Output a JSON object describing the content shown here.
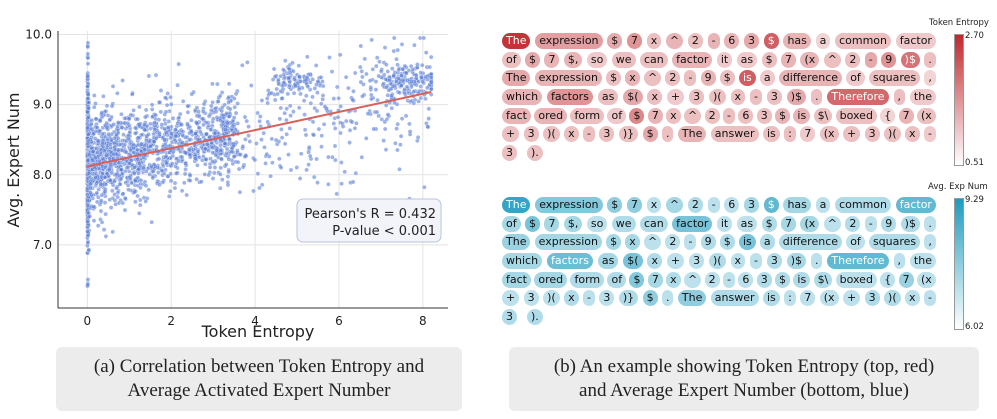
{
  "chart_data": [
    {
      "type": "scatter",
      "title": "",
      "xlabel": "Token Entropy",
      "ylabel": "Avg. Expert Num",
      "xlim": [
        -0.7,
        8.6
      ],
      "ylim": [
        6.1,
        10.05
      ],
      "xticks": [
        "0",
        "2",
        "4",
        "6",
        "8"
      ],
      "yticks": [
        "7.0",
        "8.0",
        "9.0",
        "10.0"
      ],
      "grid": true,
      "point_color": "#5b7fd6",
      "regression_line": {
        "x": [
          0,
          8.2
        ],
        "y": [
          8.12,
          9.18
        ],
        "color": "#d9605a"
      },
      "annotation": {
        "line1": "Pearson's R = 0.432",
        "line2": "P-value < 0.001"
      },
      "density_description": "dense vertical band at entropy 0 spanning 6.2-9.9; dense cloud 0-4 around 8.0-8.6; sparse clusters near 5.5 and 7.5 around 9.2-9.5"
    },
    {
      "type": "heatmap",
      "title": "Token Entropy",
      "colorbar_max": "2.70",
      "colorbar_min": "0.51",
      "colormap": [
        "#ffffff",
        "#c0282d"
      ],
      "lines": [
        [
          [
            "The",
            0.95
          ],
          [
            "expression",
            0.45
          ],
          [
            "$",
            0.4
          ],
          [
            "7",
            0.5
          ],
          [
            "x",
            0.3
          ],
          [
            "^",
            0.35
          ],
          [
            "2",
            0.3
          ],
          [
            "-",
            0.35
          ],
          [
            "6",
            0.35
          ],
          [
            "3",
            0.4
          ],
          [
            "$",
            0.75
          ],
          [
            "has",
            0.35
          ],
          [
            "a",
            0.2
          ],
          [
            "common",
            0.3
          ],
          [
            "factor",
            0.25
          ]
        ],
        [
          [
            "of",
            0.3
          ],
          [
            "$",
            0.4
          ],
          [
            "7",
            0.35
          ],
          [
            "$,",
            0.35
          ],
          [
            "so",
            0.25
          ],
          [
            "we",
            0.3
          ],
          [
            "can",
            0.3
          ],
          [
            "factor",
            0.35
          ],
          [
            "it",
            0.25
          ],
          [
            "as",
            0.25
          ],
          [
            "$",
            0.3
          ],
          [
            "7",
            0.35
          ],
          [
            "(x",
            0.35
          ],
          [
            "^",
            0.3
          ],
          [
            "2",
            0.3
          ],
          [
            "-",
            0.4
          ],
          [
            "9",
            0.5
          ],
          [
            ")$",
            0.65
          ],
          [
            ".",
            0.3
          ]
        ],
        [
          [
            "The",
            0.4
          ],
          [
            "expression",
            0.35
          ],
          [
            "$",
            0.3
          ],
          [
            "x",
            0.35
          ],
          [
            "^",
            0.3
          ],
          [
            "2",
            0.3
          ],
          [
            "-",
            0.3
          ],
          [
            "9",
            0.35
          ],
          [
            "$",
            0.3
          ],
          [
            "is",
            0.75
          ],
          [
            "a",
            0.25
          ],
          [
            "difference",
            0.35
          ],
          [
            "of",
            0.25
          ],
          [
            "squares",
            0.3
          ],
          [
            ",",
            0.2
          ]
        ],
        [
          [
            "which",
            0.35
          ],
          [
            "factors",
            0.5
          ],
          [
            "as",
            0.3
          ],
          [
            "$(",
            0.4
          ],
          [
            "x",
            0.3
          ],
          [
            "+",
            0.25
          ],
          [
            "3",
            0.3
          ],
          [
            ")(",
            0.3
          ],
          [
            "x",
            0.3
          ],
          [
            "-",
            0.3
          ],
          [
            "3",
            0.3
          ],
          [
            ")$",
            0.4
          ],
          [
            ".",
            0.3
          ],
          [
            "Therefore",
            0.7
          ],
          [
            ",",
            0.3
          ],
          [
            "the",
            0.25
          ]
        ],
        [
          [
            "fact",
            0.35
          ],
          [
            "ored",
            0.35
          ],
          [
            "form",
            0.3
          ],
          [
            "of",
            0.25
          ],
          [
            "$",
            0.55
          ],
          [
            "7",
            0.35
          ],
          [
            "x",
            0.3
          ],
          [
            "^",
            0.3
          ],
          [
            "2",
            0.3
          ],
          [
            "-",
            0.3
          ],
          [
            "6",
            0.3
          ],
          [
            "3",
            0.3
          ],
          [
            "$",
            0.35
          ],
          [
            "is",
            0.35
          ],
          [
            "$\\",
            0.3
          ],
          [
            "boxed",
            0.3
          ],
          [
            "{",
            0.2
          ],
          [
            "7",
            0.35
          ],
          [
            "(x",
            0.3
          ]
        ],
        [
          [
            "+",
            0.3
          ],
          [
            "3",
            0.3
          ],
          [
            ")(",
            0.3
          ],
          [
            "x",
            0.3
          ],
          [
            "-",
            0.3
          ],
          [
            "3",
            0.3
          ],
          [
            ")}",
            0.3
          ],
          [
            "$",
            0.4
          ],
          [
            ".",
            0.3
          ],
          [
            "The",
            0.35
          ],
          [
            "answer",
            0.3
          ],
          [
            "is",
            0.3
          ],
          [
            ":",
            0.3
          ],
          [
            "7",
            0.25
          ],
          [
            "(x",
            0.3
          ],
          [
            "+",
            0.3
          ],
          [
            "3",
            0.3
          ],
          [
            ")(",
            0.3
          ],
          [
            "x",
            0.3
          ],
          [
            "-",
            0.25
          ]
        ],
        [
          [
            "3",
            0.3
          ],
          [
            ").",
            0.3
          ]
        ]
      ]
    },
    {
      "type": "heatmap",
      "title": "Avg. Exp Num",
      "colorbar_max": "9.29",
      "colorbar_min": "6.02",
      "colormap": [
        "#ffffff",
        "#1e9bbf"
      ],
      "lines": [
        [
          [
            "The",
            0.9
          ],
          [
            "expression",
            0.55
          ],
          [
            "$",
            0.5
          ],
          [
            "7",
            0.5
          ],
          [
            "x",
            0.3
          ],
          [
            "^",
            0.4
          ],
          [
            "2",
            0.35
          ],
          [
            "-",
            0.3
          ],
          [
            "6",
            0.3
          ],
          [
            "3",
            0.4
          ],
          [
            "$",
            0.7
          ],
          [
            "has",
            0.4
          ],
          [
            "a",
            0.3
          ],
          [
            "common",
            0.35
          ],
          [
            "factor",
            0.7
          ]
        ],
        [
          [
            "of",
            0.4
          ],
          [
            "$",
            0.6
          ],
          [
            "7",
            0.4
          ],
          [
            "$,",
            0.4
          ],
          [
            "so",
            0.3
          ],
          [
            "we",
            0.35
          ],
          [
            "can",
            0.35
          ],
          [
            "factor",
            0.6
          ],
          [
            "it",
            0.3
          ],
          [
            "as",
            0.3
          ],
          [
            "$",
            0.35
          ],
          [
            "7",
            0.4
          ],
          [
            "(x",
            0.4
          ],
          [
            "^",
            0.3
          ],
          [
            "2",
            0.35
          ],
          [
            "-",
            0.3
          ],
          [
            "9",
            0.35
          ],
          [
            ")$",
            0.35
          ],
          [
            ".",
            0.3
          ]
        ],
        [
          [
            "The",
            0.45
          ],
          [
            "expression",
            0.4
          ],
          [
            "$",
            0.4
          ],
          [
            "x",
            0.4
          ],
          [
            "^",
            0.3
          ],
          [
            "2",
            0.3
          ],
          [
            "-",
            0.3
          ],
          [
            "9",
            0.35
          ],
          [
            "$",
            0.35
          ],
          [
            "is",
            0.6
          ],
          [
            "a",
            0.35
          ],
          [
            "difference",
            0.35
          ],
          [
            "of",
            0.3
          ],
          [
            "squares",
            0.35
          ],
          [
            ",",
            0.3
          ]
        ],
        [
          [
            "which",
            0.4
          ],
          [
            "factors",
            0.65
          ],
          [
            "as",
            0.4
          ],
          [
            "$(",
            0.6
          ],
          [
            "x",
            0.35
          ],
          [
            "+",
            0.3
          ],
          [
            "3",
            0.3
          ],
          [
            ")(",
            0.35
          ],
          [
            "x",
            0.3
          ],
          [
            "-",
            0.3
          ],
          [
            "3",
            0.35
          ],
          [
            ")$",
            0.4
          ],
          [
            ".",
            0.3
          ],
          [
            "Therefore",
            0.7
          ],
          [
            ",",
            0.3
          ],
          [
            "the",
            0.3
          ]
        ],
        [
          [
            "fact",
            0.4
          ],
          [
            "ored",
            0.4
          ],
          [
            "form",
            0.35
          ],
          [
            "of",
            0.35
          ],
          [
            "$",
            0.55
          ],
          [
            "7",
            0.4
          ],
          [
            "x",
            0.35
          ],
          [
            "^",
            0.3
          ],
          [
            "2",
            0.3
          ],
          [
            "-",
            0.3
          ],
          [
            "6",
            0.3
          ],
          [
            "3",
            0.35
          ],
          [
            "$",
            0.35
          ],
          [
            "is",
            0.35
          ],
          [
            "$\\",
            0.35
          ],
          [
            "boxed",
            0.3
          ],
          [
            "{",
            0.3
          ],
          [
            "7",
            0.45
          ],
          [
            "(x",
            0.3
          ]
        ],
        [
          [
            "+",
            0.3
          ],
          [
            "3",
            0.3
          ],
          [
            ")(",
            0.3
          ],
          [
            "x",
            0.35
          ],
          [
            "-",
            0.3
          ],
          [
            "3",
            0.3
          ],
          [
            ")}",
            0.35
          ],
          [
            "$",
            0.5
          ],
          [
            ".",
            0.3
          ],
          [
            "The",
            0.5
          ],
          [
            "answer",
            0.35
          ],
          [
            "is",
            0.35
          ],
          [
            ":",
            0.3
          ],
          [
            "7",
            0.3
          ],
          [
            "(x",
            0.3
          ],
          [
            "+",
            0.3
          ],
          [
            "3",
            0.35
          ],
          [
            ")(",
            0.35
          ],
          [
            "x",
            0.3
          ],
          [
            "-",
            0.3
          ]
        ],
        [
          [
            "3",
            0.35
          ],
          [
            ").",
            0.35
          ]
        ]
      ]
    }
  ],
  "captions": {
    "a_line1": "(a) Correlation between Token Entropy and",
    "a_line2": "Average Activated Expert Number",
    "b_line1": "(b) An example showing Token Entropy (top, red)",
    "b_line2": "and Average Expert Number (bottom, blue)"
  }
}
